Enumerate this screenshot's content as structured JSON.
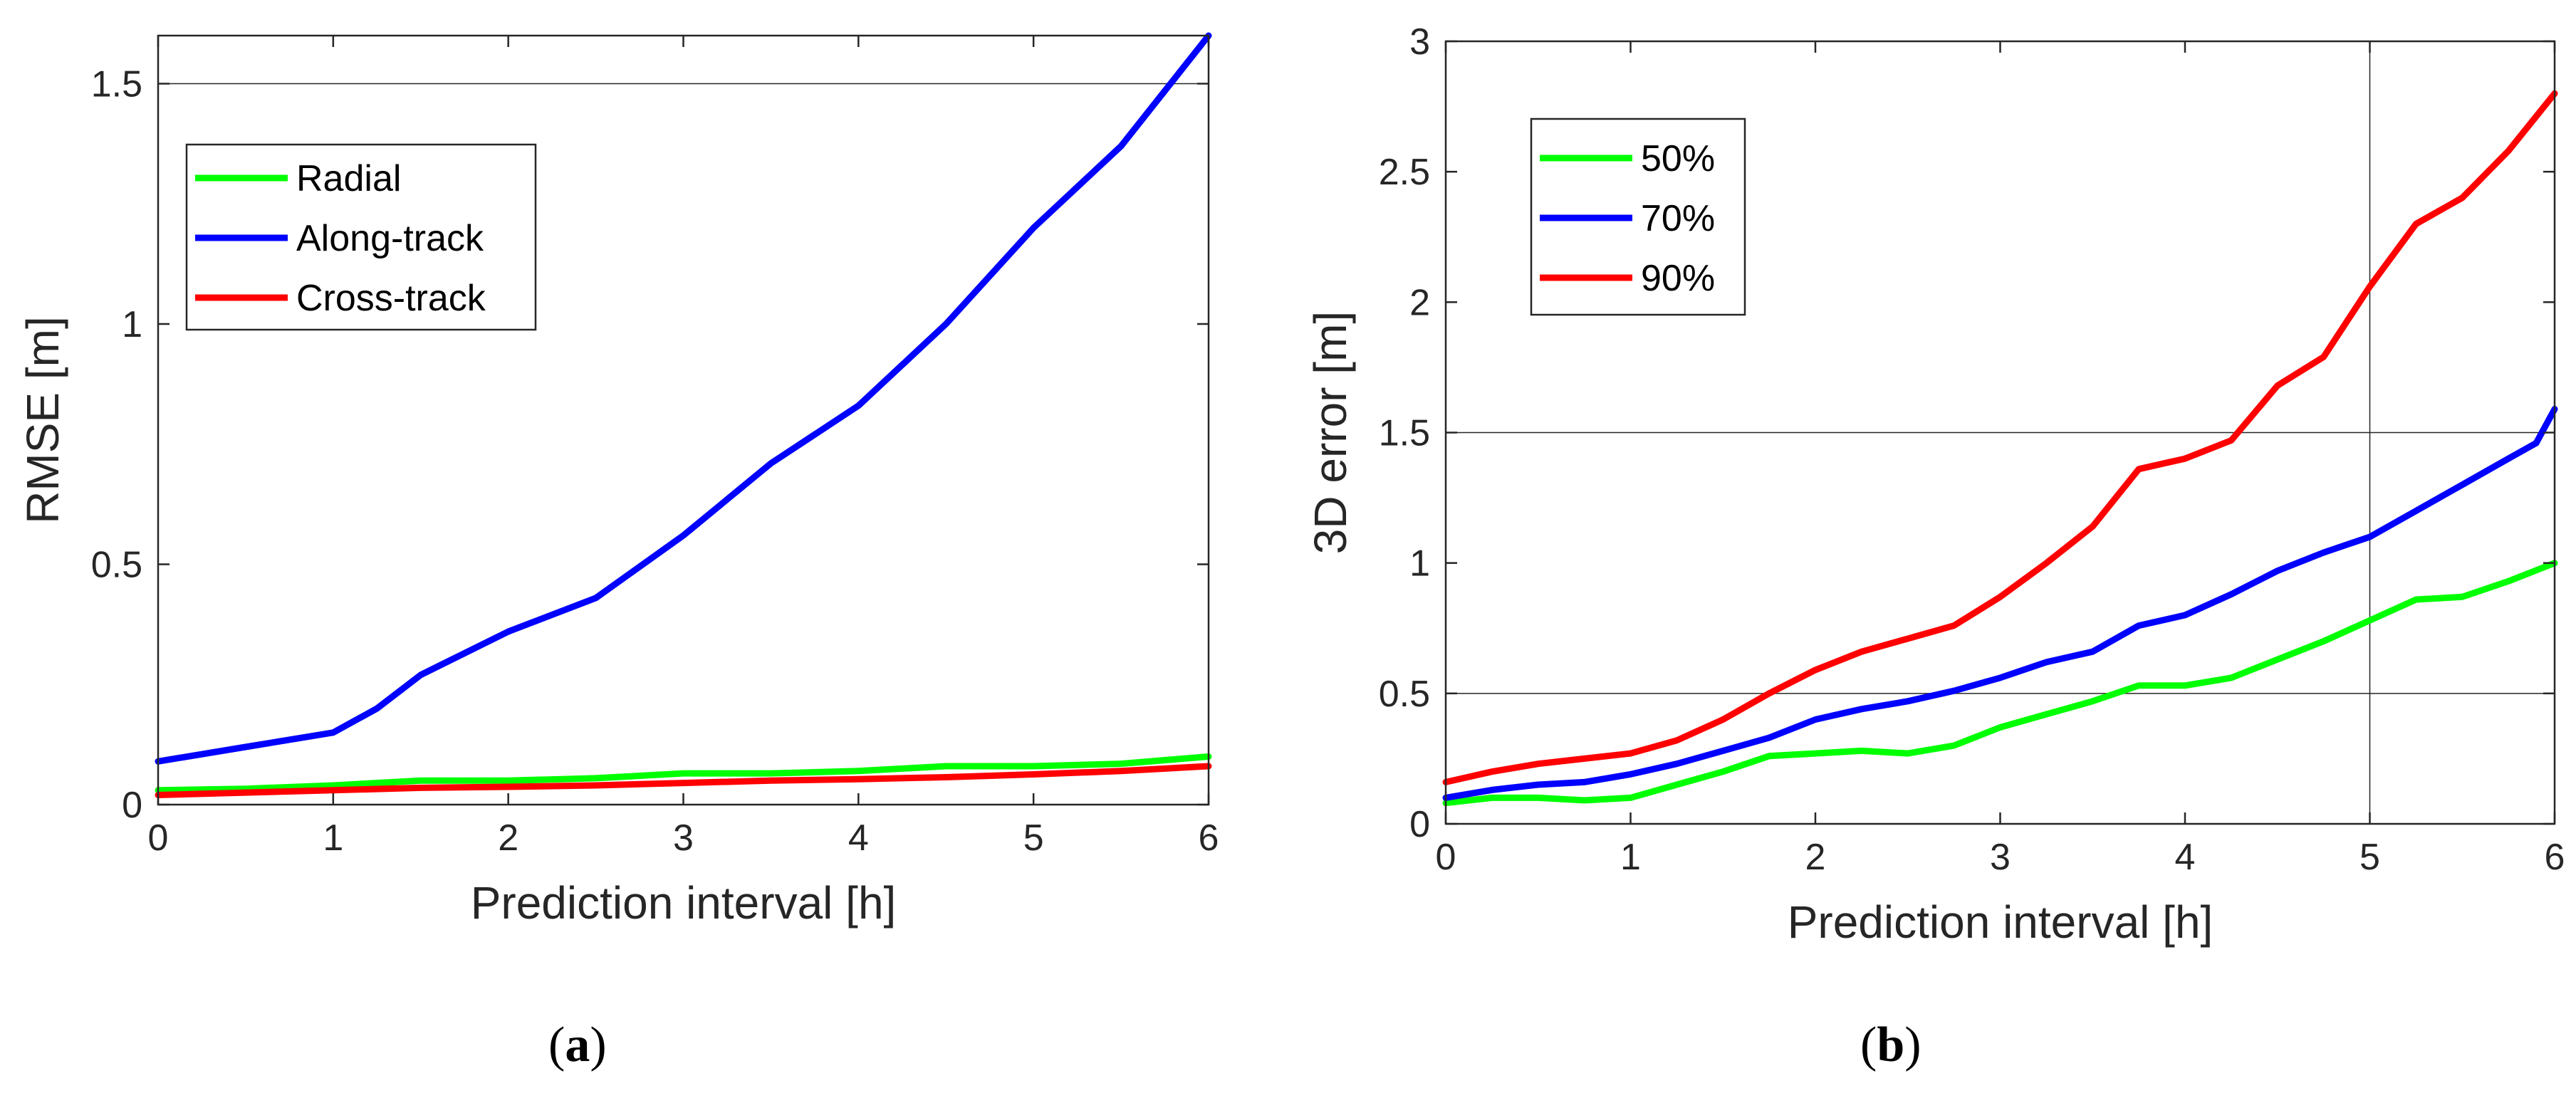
{
  "chart_data": [
    {
      "type": "line",
      "panel": "a",
      "caption": "(a)",
      "xlabel": "Prediction interval [h]",
      "ylabel": "RMSE [m]",
      "xlim": [
        0,
        6
      ],
      "ylim": [
        0,
        1.6
      ],
      "xticks": [
        0,
        1,
        2,
        3,
        4,
        5,
        6
      ],
      "yticks": [
        0,
        0.5,
        1,
        1.5
      ],
      "ytick_labels": [
        "0",
        "0.5",
        "1",
        "1.5"
      ],
      "hgrid": [
        1.5
      ],
      "vgrid": [],
      "legend": "top-left",
      "series": [
        {
          "name": "Radial",
          "color": "#00ff00",
          "x": [
            0,
            0.5,
            1,
            1.5,
            2,
            2.5,
            3,
            3.5,
            4,
            4.5,
            5,
            5.5,
            6
          ],
          "y": [
            0.03,
            0.033,
            0.04,
            0.05,
            0.05,
            0.055,
            0.065,
            0.065,
            0.07,
            0.08,
            0.08,
            0.085,
            0.1
          ]
        },
        {
          "name": "Along-track",
          "color": "#0000ff",
          "x": [
            0,
            0.5,
            1,
            1.25,
            1.5,
            2,
            2.5,
            3,
            3.5,
            4,
            4.5,
            5,
            5.5,
            6
          ],
          "y": [
            0.09,
            0.12,
            0.15,
            0.2,
            0.27,
            0.36,
            0.43,
            0.56,
            0.71,
            0.83,
            1.0,
            1.2,
            1.37,
            1.6
          ]
        },
        {
          "name": "Cross-track",
          "color": "#ff0000",
          "x": [
            0,
            0.5,
            1,
            1.5,
            2,
            2.5,
            3,
            3.5,
            4,
            4.5,
            5,
            5.5,
            6
          ],
          "y": [
            0.02,
            0.025,
            0.03,
            0.035,
            0.037,
            0.04,
            0.045,
            0.05,
            0.053,
            0.057,
            0.063,
            0.07,
            0.08
          ]
        }
      ]
    },
    {
      "type": "line",
      "panel": "b",
      "caption": "(b)",
      "xlabel": "Prediction interval [h]",
      "ylabel": "3D error [m]",
      "xlim": [
        0,
        6
      ],
      "ylim": [
        0,
        3
      ],
      "xticks": [
        0,
        1,
        2,
        3,
        4,
        5,
        6
      ],
      "yticks": [
        0,
        0.5,
        1,
        1.5,
        2,
        2.5,
        3
      ],
      "ytick_labels": [
        "0",
        "0.5",
        "1",
        "1.5",
        "2",
        "2.5",
        "3"
      ],
      "hgrid": [
        0.5,
        1.5
      ],
      "vgrid": [
        5
      ],
      "legend": "top-left",
      "series": [
        {
          "name": "50%",
          "color": "#00ff00",
          "x": [
            0,
            0.25,
            0.5,
            0.75,
            1,
            1.25,
            1.5,
            1.75,
            2,
            2.25,
            2.5,
            2.75,
            3,
            3.25,
            3.5,
            3.75,
            4,
            4.25,
            4.5,
            4.75,
            5,
            5.25,
            5.5,
            5.75,
            6
          ],
          "y": [
            0.08,
            0.1,
            0.1,
            0.09,
            0.1,
            0.15,
            0.2,
            0.26,
            0.27,
            0.28,
            0.27,
            0.3,
            0.37,
            0.42,
            0.47,
            0.53,
            0.53,
            0.56,
            0.63,
            0.7,
            0.78,
            0.86,
            0.87,
            0.93,
            1.0
          ]
        },
        {
          "name": "70%",
          "color": "#0000ff",
          "x": [
            0,
            0.25,
            0.5,
            0.75,
            1,
            1.25,
            1.5,
            1.75,
            2,
            2.25,
            2.5,
            2.75,
            3,
            3.25,
            3.5,
            3.75,
            4,
            4.25,
            4.5,
            4.75,
            5,
            5.25,
            5.5,
            5.75,
            5.9,
            6
          ],
          "y": [
            0.1,
            0.13,
            0.15,
            0.16,
            0.19,
            0.23,
            0.28,
            0.33,
            0.4,
            0.44,
            0.47,
            0.51,
            0.56,
            0.62,
            0.66,
            0.76,
            0.8,
            0.88,
            0.97,
            1.04,
            1.1,
            1.2,
            1.3,
            1.4,
            1.46,
            1.59
          ]
        },
        {
          "name": "90%",
          "color": "#ff0000",
          "x": [
            0,
            0.25,
            0.5,
            0.75,
            1,
            1.25,
            1.5,
            1.75,
            2,
            2.25,
            2.5,
            2.75,
            3,
            3.25,
            3.5,
            3.75,
            4,
            4.25,
            4.5,
            4.75,
            5,
            5.25,
            5.5,
            5.75,
            6
          ],
          "y": [
            0.16,
            0.2,
            0.23,
            0.25,
            0.27,
            0.32,
            0.4,
            0.5,
            0.59,
            0.66,
            0.71,
            0.76,
            0.87,
            1.0,
            1.14,
            1.36,
            1.4,
            1.47,
            1.68,
            1.79,
            2.06,
            2.3,
            2.4,
            2.58,
            2.8
          ]
        }
      ]
    }
  ]
}
